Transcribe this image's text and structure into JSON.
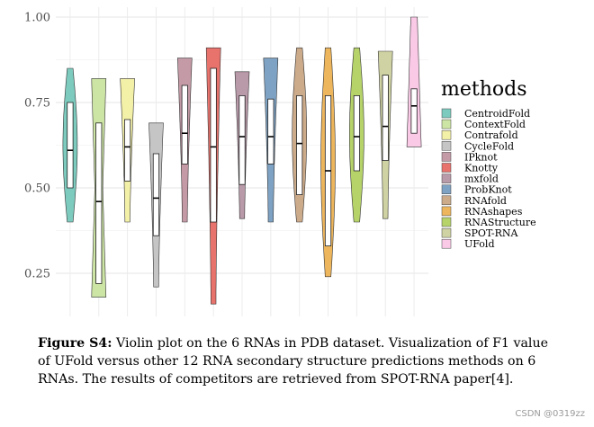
{
  "chart_data": {
    "type": "violin",
    "title": "",
    "xlabel": "",
    "ylabel": "",
    "ylim": [
      0.15,
      1.02
    ],
    "y_ticks": [
      1.0,
      0.75,
      0.5,
      0.25
    ],
    "y_tick_labels": [
      "1.00",
      "0.75",
      "0.50",
      "0.25"
    ],
    "grid": true,
    "legend_title": "methods",
    "legend_position": "right",
    "series": [
      {
        "name": "CentroidFold",
        "color": "#7ccbbe",
        "min": 0.4,
        "max": 0.85,
        "q1": 0.5,
        "median": 0.61,
        "q3": 0.75,
        "shape": "mid"
      },
      {
        "name": "ContextFold",
        "color": "#cde5a4",
        "min": 0.18,
        "max": 0.82,
        "q1": 0.22,
        "median": 0.46,
        "q3": 0.69,
        "shape": "ends"
      },
      {
        "name": "Contrafold",
        "color": "#f3f0a8",
        "min": 0.4,
        "max": 0.82,
        "q1": 0.52,
        "median": 0.62,
        "q3": 0.7,
        "shape": "top"
      },
      {
        "name": "CycleFold",
        "color": "#c5c5c5",
        "min": 0.21,
        "max": 0.69,
        "q1": 0.36,
        "median": 0.47,
        "q3": 0.6,
        "shape": "top"
      },
      {
        "name": "IPknot",
        "color": "#c49aa6",
        "min": 0.4,
        "max": 0.88,
        "q1": 0.57,
        "median": 0.66,
        "q3": 0.8,
        "shape": "top"
      },
      {
        "name": "Knotty",
        "color": "#e8726c",
        "min": 0.16,
        "max": 0.91,
        "q1": 0.4,
        "median": 0.62,
        "q3": 0.85,
        "shape": "top"
      },
      {
        "name": "mxfold",
        "color": "#b99aa9",
        "min": 0.41,
        "max": 0.84,
        "q1": 0.51,
        "median": 0.65,
        "q3": 0.77,
        "shape": "top"
      },
      {
        "name": "ProbKnot",
        "color": "#7ea2c3",
        "min": 0.4,
        "max": 0.88,
        "q1": 0.57,
        "median": 0.65,
        "q3": 0.76,
        "shape": "top"
      },
      {
        "name": "RNAfold",
        "color": "#ccab8a",
        "min": 0.4,
        "max": 0.91,
        "q1": 0.48,
        "median": 0.63,
        "q3": 0.77,
        "shape": "mid"
      },
      {
        "name": "RNAshapes",
        "color": "#eeb65c",
        "min": 0.24,
        "max": 0.91,
        "q1": 0.33,
        "median": 0.55,
        "q3": 0.77,
        "shape": "mid"
      },
      {
        "name": "RNAStructure",
        "color": "#b6d36a",
        "min": 0.4,
        "max": 0.91,
        "q1": 0.55,
        "median": 0.65,
        "q3": 0.77,
        "shape": "mid"
      },
      {
        "name": "SPOT-RNA",
        "color": "#cfd2a2",
        "min": 0.41,
        "max": 0.9,
        "q1": 0.58,
        "median": 0.68,
        "q3": 0.83,
        "shape": "top"
      },
      {
        "name": "UFold",
        "color": "#f9c9e6",
        "min": 0.62,
        "max": 1.0,
        "q1": 0.66,
        "median": 0.74,
        "q3": 0.79,
        "shape": "bottom"
      }
    ]
  },
  "caption": {
    "label": "Figure S4:",
    "text": "Violin plot on the 6 RNAs in PDB dataset. Visualization of F1 value of UFold versus other 12 RNA secondary structure predictions methods on 6 RNAs. The results of competitors are retrieved from SPOT-RNA paper[4]."
  },
  "watermark": "CSDN @0319zz"
}
